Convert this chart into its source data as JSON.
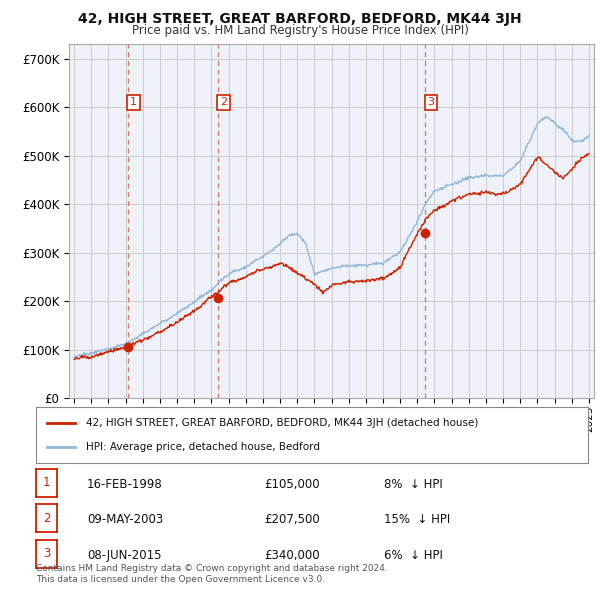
{
  "title": "42, HIGH STREET, GREAT BARFORD, BEDFORD, MK44 3JH",
  "subtitle": "Price paid vs. HM Land Registry's House Price Index (HPI)",
  "background_color": "#ffffff",
  "grid_color": "#cccccc",
  "plot_bg": "#eef2f8",
  "hpi_color": "#93b8d8",
  "price_color": "#cc2200",
  "ylabel_ticks": [
    "£0",
    "£100K",
    "£200K",
    "£300K",
    "£400K",
    "£500K",
    "£600K",
    "£700K"
  ],
  "ytick_values": [
    0,
    100000,
    200000,
    300000,
    400000,
    500000,
    600000,
    700000
  ],
  "ylim": [
    0,
    730000
  ],
  "xlim_start": 1994.7,
  "xlim_end": 2025.3,
  "purchases": [
    {
      "date_label": "16-FEB-1998",
      "year": 1998.12,
      "price": 105000,
      "label": "1",
      "pct": "8%",
      "dir": "↓"
    },
    {
      "date_label": "09-MAY-2003",
      "year": 2003.36,
      "price": 207500,
      "label": "2",
      "pct": "15%",
      "dir": "↓"
    },
    {
      "date_label": "08-JUN-2015",
      "year": 2015.44,
      "price": 340000,
      "label": "3",
      "pct": "6%",
      "dir": "↓"
    }
  ],
  "legend_line1": "42, HIGH STREET, GREAT BARFORD, BEDFORD, MK44 3JH (detached house)",
  "legend_line2": "HPI: Average price, detached house, Bedford",
  "footer1": "Contains HM Land Registry data © Crown copyright and database right 2024.",
  "footer2": "This data is licensed under the Open Government Licence v3.0."
}
